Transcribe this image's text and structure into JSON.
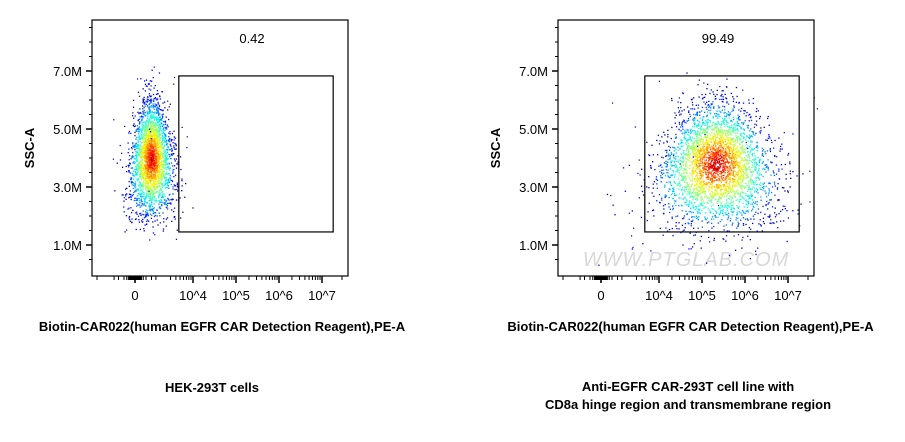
{
  "chart_data": [
    {
      "type": "scatter",
      "plot_style": "density dot plot (jet colormap)",
      "xlabel": "Biotin-CAR022(human EGFR CAR Detection Reagent),PE-A",
      "ylabel": "SSC-A",
      "x_scale": "biexponential",
      "x_ticks": [
        "0",
        "10^4",
        "10^5",
        "10^6",
        "10^7"
      ],
      "y_ticks": [
        "1.0M",
        "3.0M",
        "5.0M",
        "7.0M"
      ],
      "y_tick_values": [
        1000000,
        3000000,
        5000000,
        7000000
      ],
      "gate": {
        "percent": "0.42",
        "x_range": [
          "10^3.7",
          "10^7.25"
        ],
        "y_range": [
          1450000,
          6830000
        ]
      },
      "population": {
        "x_center": "~0",
        "y_center": 4000000
      },
      "caption": "HEK-293T cells"
    },
    {
      "type": "scatter",
      "plot_style": "density dot plot (jet colormap)",
      "xlabel": "Biotin-CAR022(human EGFR CAR Detection Reagent),PE-A",
      "ylabel": "SSC-A",
      "x_scale": "biexponential",
      "x_ticks": [
        "0",
        "10^4",
        "10^5",
        "10^6",
        "10^7"
      ],
      "y_ticks": [
        "1.0M",
        "3.0M",
        "5.0M",
        "7.0M"
      ],
      "y_tick_values": [
        1000000,
        3000000,
        5000000,
        7000000
      ],
      "gate": {
        "percent": "99.49",
        "x_range": [
          "10^3.7",
          "10^7.25"
        ],
        "y_range": [
          1450000,
          6830000
        ]
      },
      "population": {
        "x_center": "~10^5",
        "y_center": 3800000
      },
      "caption_lines": [
        "Anti-EGFR CAR-293T cell line with",
        "CD8a hinge region and transmembrane region"
      ]
    }
  ],
  "watermark": "WWW.PTGLAB.COM",
  "colors": {
    "low": "#00008f",
    "mid": "#00ff80",
    "high": "#ff2000",
    "axis": "#000000",
    "watermark": "#d8d8d8"
  }
}
